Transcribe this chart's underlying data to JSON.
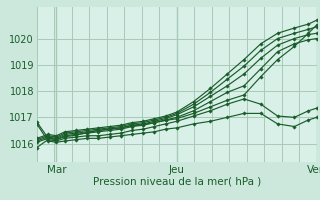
{
  "bg_color": "#cce8dc",
  "plot_bg_color": "#d8f0e8",
  "grid_color": "#a8c8b8",
  "line_color": "#1a5c2a",
  "marker_color": "#1a5c2a",
  "xlabel": "Pression niveau de la mer( hPa )",
  "xlabel_color": "#1a5c2a",
  "xtick_labels": [
    "Mar",
    "Jeu",
    "Ven"
  ],
  "ylim": [
    1015.3,
    1021.2
  ],
  "yticks": [
    1016,
    1017,
    1018,
    1019,
    1020
  ],
  "series": [
    {
      "x": [
        0.0,
        0.04,
        0.07,
        0.1,
        0.14,
        0.18,
        0.22,
        0.26,
        0.3,
        0.34,
        0.38,
        0.42,
        0.46,
        0.5,
        0.56,
        0.62,
        0.68,
        0.74,
        0.8,
        0.86,
        0.92,
        0.97,
        1.0
      ],
      "y": [
        1016.75,
        1016.1,
        1016.05,
        1016.1,
        1016.15,
        1016.2,
        1016.2,
        1016.25,
        1016.3,
        1016.35,
        1016.4,
        1016.45,
        1016.55,
        1016.6,
        1016.75,
        1016.85,
        1017.0,
        1017.15,
        1017.15,
        1016.75,
        1016.65,
        1016.9,
        1017.0
      ]
    },
    {
      "x": [
        0.0,
        0.04,
        0.07,
        0.1,
        0.14,
        0.18,
        0.22,
        0.26,
        0.3,
        0.34,
        0.38,
        0.42,
        0.46,
        0.5,
        0.56,
        0.62,
        0.68,
        0.74,
        0.8,
        0.86,
        0.92,
        0.97,
        1.0
      ],
      "y": [
        1015.85,
        1016.15,
        1016.1,
        1016.2,
        1016.25,
        1016.3,
        1016.3,
        1016.35,
        1016.4,
        1016.5,
        1016.55,
        1016.65,
        1016.75,
        1016.85,
        1017.05,
        1017.25,
        1017.5,
        1017.7,
        1017.5,
        1017.05,
        1017.0,
        1017.25,
        1017.35
      ]
    },
    {
      "x": [
        0.0,
        0.04,
        0.07,
        0.1,
        0.14,
        0.18,
        0.22,
        0.26,
        0.3,
        0.34,
        0.38,
        0.42,
        0.46,
        0.5,
        0.56,
        0.62,
        0.68,
        0.74,
        0.8,
        0.86,
        0.92,
        0.97,
        1.0
      ],
      "y": [
        1016.05,
        1016.2,
        1016.15,
        1016.3,
        1016.35,
        1016.4,
        1016.45,
        1016.5,
        1016.55,
        1016.65,
        1016.7,
        1016.8,
        1016.9,
        1017.0,
        1017.25,
        1017.6,
        1017.95,
        1018.2,
        1018.85,
        1019.5,
        1019.8,
        1019.95,
        1020.0
      ]
    },
    {
      "x": [
        0.0,
        0.04,
        0.07,
        0.1,
        0.14,
        0.18,
        0.22,
        0.26,
        0.3,
        0.34,
        0.38,
        0.42,
        0.46,
        0.5,
        0.56,
        0.62,
        0.68,
        0.74,
        0.8,
        0.86,
        0.92,
        0.97,
        1.0
      ],
      "y": [
        1016.1,
        1016.25,
        1016.2,
        1016.35,
        1016.4,
        1016.45,
        1016.5,
        1016.55,
        1016.6,
        1016.7,
        1016.75,
        1016.85,
        1016.95,
        1017.1,
        1017.4,
        1017.8,
        1018.2,
        1018.65,
        1019.25,
        1019.75,
        1020.0,
        1020.15,
        1020.2
      ]
    },
    {
      "x": [
        0.0,
        0.04,
        0.07,
        0.1,
        0.14,
        0.18,
        0.22,
        0.26,
        0.3,
        0.34,
        0.38,
        0.42,
        0.46,
        0.5,
        0.56,
        0.62,
        0.68,
        0.74,
        0.8,
        0.86,
        0.92,
        0.97,
        1.0
      ],
      "y": [
        1016.15,
        1016.3,
        1016.25,
        1016.4,
        1016.45,
        1016.5,
        1016.55,
        1016.6,
        1016.65,
        1016.75,
        1016.8,
        1016.9,
        1017.0,
        1017.15,
        1017.5,
        1017.95,
        1018.45,
        1018.95,
        1019.55,
        1020.0,
        1020.2,
        1020.35,
        1020.45
      ]
    },
    {
      "x": [
        0.0,
        0.04,
        0.07,
        0.1,
        0.14,
        0.18,
        0.22,
        0.26,
        0.3,
        0.34,
        0.38,
        0.42,
        0.46,
        0.5,
        0.56,
        0.62,
        0.68,
        0.74,
        0.8,
        0.86,
        0.92,
        0.97,
        1.0
      ],
      "y": [
        1016.2,
        1016.35,
        1016.3,
        1016.45,
        1016.5,
        1016.55,
        1016.6,
        1016.65,
        1016.7,
        1016.8,
        1016.85,
        1016.95,
        1017.05,
        1017.2,
        1017.6,
        1018.1,
        1018.65,
        1019.2,
        1019.8,
        1020.2,
        1020.4,
        1020.55,
        1020.7
      ]
    },
    {
      "x": [
        0.0,
        0.04,
        0.07,
        0.1,
        0.14,
        0.18,
        0.22,
        0.26,
        0.3,
        0.34,
        0.38,
        0.42,
        0.46,
        0.5,
        0.56,
        0.62,
        0.68,
        0.74,
        0.8,
        0.86,
        0.92,
        0.97,
        1.0
      ],
      "y": [
        1016.82,
        1016.22,
        1016.16,
        1016.26,
        1016.32,
        1016.42,
        1016.5,
        1016.56,
        1016.6,
        1016.68,
        1016.72,
        1016.8,
        1016.88,
        1016.95,
        1017.15,
        1017.4,
        1017.65,
        1017.85,
        1018.55,
        1019.2,
        1019.7,
        1020.2,
        1020.52
      ]
    }
  ]
}
